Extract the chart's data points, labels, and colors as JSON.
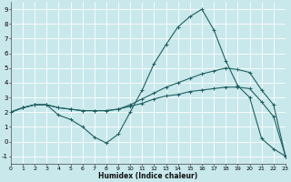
{
  "xlabel": "Humidex (Indice chaleur)",
  "xlim": [
    0,
    23
  ],
  "ylim": [
    -1.5,
    9.5
  ],
  "yticks": [
    -1,
    0,
    1,
    2,
    3,
    4,
    5,
    6,
    7,
    8,
    9
  ],
  "xticks": [
    0,
    1,
    2,
    3,
    4,
    5,
    6,
    7,
    8,
    9,
    10,
    11,
    12,
    13,
    14,
    15,
    16,
    17,
    18,
    19,
    20,
    21,
    22,
    23
  ],
  "bg_color": "#c8e8ec",
  "grid_color": "#b8d8dc",
  "line_color": "#1e6060",
  "curve1_x": [
    0,
    1,
    2,
    3,
    4,
    5,
    6,
    7,
    8,
    9,
    10,
    11,
    12,
    13,
    14,
    15,
    16,
    17,
    18,
    19,
    20,
    21,
    22,
    23
  ],
  "curve1_y": [
    2.0,
    2.3,
    2.5,
    2.5,
    1.8,
    1.5,
    1.0,
    0.3,
    -0.1,
    0.5,
    2.0,
    3.5,
    5.3,
    6.6,
    7.8,
    8.5,
    9.0,
    7.6,
    5.5,
    3.8,
    3.0,
    0.2,
    -0.5,
    -1.0
  ],
  "curve2_x": [
    0,
    1,
    2,
    3,
    4,
    5,
    6,
    7,
    8,
    9,
    10,
    11,
    12,
    13,
    14,
    15,
    16,
    17,
    18,
    19,
    20,
    21,
    22,
    23
  ],
  "curve2_y": [
    2.0,
    2.3,
    2.5,
    2.5,
    2.3,
    2.2,
    2.1,
    2.1,
    2.1,
    2.2,
    2.5,
    2.9,
    3.3,
    3.7,
    4.0,
    4.3,
    4.6,
    4.8,
    5.0,
    4.9,
    4.7,
    3.5,
    2.5,
    -1.0
  ],
  "curve3_x": [
    0,
    1,
    2,
    3,
    4,
    5,
    6,
    7,
    8,
    9,
    10,
    11,
    12,
    13,
    14,
    15,
    16,
    17,
    18,
    19,
    20,
    21,
    22,
    23
  ],
  "curve3_y": [
    2.0,
    2.3,
    2.5,
    2.5,
    2.3,
    2.2,
    2.1,
    2.1,
    2.1,
    2.2,
    2.4,
    2.6,
    2.9,
    3.1,
    3.2,
    3.4,
    3.5,
    3.6,
    3.7,
    3.7,
    3.6,
    2.7,
    1.7,
    -1.0
  ]
}
